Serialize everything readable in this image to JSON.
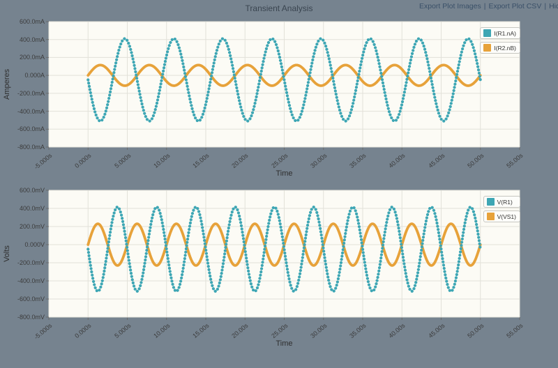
{
  "header": {
    "title": "Transient Analysis",
    "separator": "|",
    "links": [
      {
        "label": "Export Plot Images"
      },
      {
        "label": "Export Plot CSV"
      },
      {
        "label": "Hide"
      }
    ]
  },
  "colors": {
    "page_background": "#76838f",
    "plot_background": "#fcfbf5",
    "grid": "#e2e1d9",
    "plot_border": "#d5d4cc",
    "axis_tick_mark": "#6b6b6b",
    "teal": "#3da6b4",
    "orange": "#e7a23a",
    "text": "#3b3b3b",
    "link_text": "#3a5068"
  },
  "chart_data": [
    {
      "type": "line",
      "title": "Transient Analysis",
      "xlabel": "Time",
      "ylabel": "Amperes",
      "xlim": [
        -5,
        55
      ],
      "ylim": [
        -800,
        600
      ],
      "grid": true,
      "legend_position": "top-right",
      "x_ticks": [
        "-5.000s",
        "0.000s",
        "5.000s",
        "10.00s",
        "15.00s",
        "20.00s",
        "25.00s",
        "30.00s",
        "35.00s",
        "40.00s",
        "45.00s",
        "50.00s",
        "55.00s"
      ],
      "y_ticks": [
        "600.0mA",
        "400.0mA",
        "200.0mA",
        "0.000A",
        "-200.0mA",
        "-400.0mA",
        "-600.0mA",
        "-800.0mA"
      ],
      "t_range": [
        0,
        50
      ],
      "series": [
        {
          "name": "I(R1.nA)",
          "color": "#3da6b4",
          "line_style": "dotted",
          "waveform": "sine",
          "unit": "mA",
          "amplitude": -460,
          "dc_offset": -50,
          "period": 6.25,
          "phase": 0,
          "approx_peak": 410,
          "approx_trough": -510
        },
        {
          "name": "I(R2.nB)",
          "color": "#e7a23a",
          "line_style": "solid",
          "waveform": "sine",
          "unit": "mA",
          "amplitude": 115,
          "dc_offset": 0,
          "period": 6.25,
          "phase": 0,
          "approx_peak": 115,
          "approx_trough": -115
        }
      ]
    },
    {
      "type": "line",
      "title": "",
      "xlabel": "Time",
      "ylabel": "Volts",
      "xlim": [
        -5,
        55
      ],
      "ylim": [
        -800,
        600
      ],
      "grid": true,
      "legend_position": "top-right",
      "x_ticks": [
        "-5.000s",
        "0.000s",
        "5.000s",
        "10.00s",
        "15.00s",
        "20.00s",
        "25.00s",
        "30.00s",
        "35.00s",
        "40.00s",
        "45.00s",
        "50.00s",
        "55.00s"
      ],
      "y_ticks": [
        "600.0mV",
        "400.0mV",
        "200.0mV",
        "0.000V",
        "-200.0mV",
        "-400.0mV",
        "-600.0mV",
        "-800.0mV"
      ],
      "t_range": [
        0,
        50
      ],
      "series": [
        {
          "name": "V(R1)",
          "color": "#3da6b4",
          "line_style": "dotted",
          "waveform": "sine",
          "unit": "mV",
          "amplitude": -465,
          "dc_offset": -50,
          "period": 5.0,
          "phase": 0,
          "approx_peak": 420,
          "approx_trough": -515
        },
        {
          "name": "V(VS1)",
          "color": "#e7a23a",
          "line_style": "solid",
          "waveform": "sine",
          "unit": "mV",
          "amplitude": 230,
          "dc_offset": 0,
          "period": 5.0,
          "phase": 0,
          "approx_peak": 230,
          "approx_trough": -230
        }
      ]
    }
  ]
}
